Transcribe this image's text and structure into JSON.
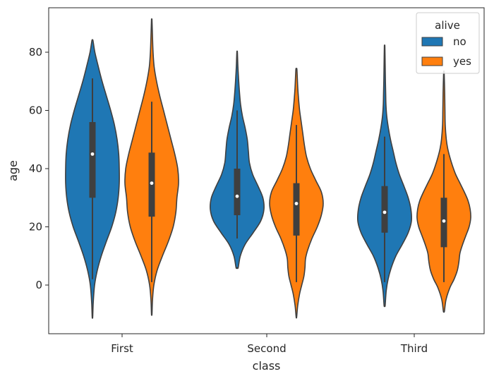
{
  "chart_data": {
    "type": "violin",
    "title": "",
    "xlabel": "class",
    "ylabel": "age",
    "categories": [
      "First",
      "Second",
      "Third"
    ],
    "yticks": [
      0,
      20,
      40,
      60,
      80
    ],
    "ylim": [
      -16,
      95
    ],
    "legend": {
      "title": "alive",
      "placement": "top-right"
    },
    "series": [
      {
        "name": "no",
        "color": "#1f77b4",
        "groups": [
          {
            "category": "First",
            "min_extent": -11,
            "max_extent": 84,
            "q1": 30,
            "median": 45,
            "q3": 56,
            "whisker_low": 2,
            "whisker_high": 71,
            "profile": [
              [
                -11,
                0.01
              ],
              [
                -6,
                0.03
              ],
              [
                0,
                0.08
              ],
              [
                5,
                0.18
              ],
              [
                10,
                0.33
              ],
              [
                15,
                0.52
              ],
              [
                20,
                0.72
              ],
              [
                25,
                0.87
              ],
              [
                30,
                0.96
              ],
              [
                35,
                1.0
              ],
              [
                40,
                1.0
              ],
              [
                45,
                0.98
              ],
              [
                50,
                0.92
              ],
              [
                55,
                0.82
              ],
              [
                60,
                0.68
              ],
              [
                65,
                0.52
              ],
              [
                70,
                0.36
              ],
              [
                75,
                0.22
              ],
              [
                80,
                0.09
              ],
              [
                84,
                0.02
              ]
            ]
          },
          {
            "category": "Second",
            "min_extent": 6,
            "max_extent": 80,
            "q1": 24,
            "median": 30.5,
            "q3": 40,
            "whisker_low": 16,
            "whisker_high": 60,
            "profile": [
              [
                6,
                0.04
              ],
              [
                10,
                0.12
              ],
              [
                14,
                0.3
              ],
              [
                18,
                0.6
              ],
              [
                22,
                0.88
              ],
              [
                26,
                1.0
              ],
              [
                30,
                0.96
              ],
              [
                34,
                0.78
              ],
              [
                38,
                0.58
              ],
              [
                42,
                0.46
              ],
              [
                46,
                0.42
              ],
              [
                50,
                0.38
              ],
              [
                54,
                0.3
              ],
              [
                58,
                0.2
              ],
              [
                62,
                0.13
              ],
              [
                66,
                0.09
              ],
              [
                70,
                0.06
              ],
              [
                75,
                0.03
              ],
              [
                80,
                0.01
              ]
            ]
          },
          {
            "category": "Third",
            "min_extent": -7,
            "max_extent": 82,
            "q1": 18,
            "median": 25,
            "q3": 34,
            "whisker_low": 1,
            "whisker_high": 51,
            "profile": [
              [
                -7,
                0.02
              ],
              [
                -2,
                0.06
              ],
              [
                2,
                0.13
              ],
              [
                6,
                0.25
              ],
              [
                10,
                0.42
              ],
              [
                14,
                0.66
              ],
              [
                18,
                0.88
              ],
              [
                22,
                1.0
              ],
              [
                26,
                0.98
              ],
              [
                30,
                0.88
              ],
              [
                34,
                0.72
              ],
              [
                38,
                0.55
              ],
              [
                42,
                0.42
              ],
              [
                46,
                0.32
              ],
              [
                50,
                0.22
              ],
              [
                54,
                0.14
              ],
              [
                58,
                0.08
              ],
              [
                62,
                0.05
              ],
              [
                66,
                0.04
              ],
              [
                70,
                0.03
              ],
              [
                76,
                0.02
              ],
              [
                82,
                0.01
              ]
            ]
          }
        ]
      },
      {
        "name": "yes",
        "color": "#ff7f0e",
        "groups": [
          {
            "category": "First",
            "min_extent": -10,
            "max_extent": 91,
            "q1": 23.5,
            "median": 35,
            "q3": 45.5,
            "whisker_low": 1,
            "whisker_high": 63,
            "profile": [
              [
                -10,
                0.01
              ],
              [
                -5,
                0.03
              ],
              [
                0,
                0.08
              ],
              [
                5,
                0.2
              ],
              [
                10,
                0.4
              ],
              [
                15,
                0.62
              ],
              [
                20,
                0.8
              ],
              [
                25,
                0.9
              ],
              [
                30,
                0.94
              ],
              [
                35,
                1.0
              ],
              [
                40,
                0.97
              ],
              [
                45,
                0.86
              ],
              [
                50,
                0.72
              ],
              [
                55,
                0.58
              ],
              [
                60,
                0.44
              ],
              [
                65,
                0.3
              ],
              [
                70,
                0.18
              ],
              [
                75,
                0.09
              ],
              [
                80,
                0.05
              ],
              [
                85,
                0.03
              ],
              [
                91,
                0.01
              ]
            ]
          },
          {
            "category": "Second",
            "min_extent": -11,
            "max_extent": 74,
            "q1": 17,
            "median": 28,
            "q3": 35,
            "whisker_low": 1,
            "whisker_high": 55,
            "profile": [
              [
                -11,
                0.01
              ],
              [
                -7,
                0.05
              ],
              [
                -3,
                0.12
              ],
              [
                0,
                0.2
              ],
              [
                3,
                0.28
              ],
              [
                6,
                0.32
              ],
              [
                9,
                0.34
              ],
              [
                12,
                0.42
              ],
              [
                16,
                0.58
              ],
              [
                20,
                0.78
              ],
              [
                24,
                0.93
              ],
              [
                28,
                1.0
              ],
              [
                32,
                0.93
              ],
              [
                36,
                0.72
              ],
              [
                40,
                0.52
              ],
              [
                44,
                0.38
              ],
              [
                48,
                0.3
              ],
              [
                52,
                0.24
              ],
              [
                56,
                0.18
              ],
              [
                60,
                0.12
              ],
              [
                64,
                0.08
              ],
              [
                68,
                0.05
              ],
              [
                74,
                0.02
              ]
            ]
          },
          {
            "category": "Third",
            "min_extent": -9,
            "max_extent": 73,
            "q1": 13,
            "median": 22,
            "q3": 30,
            "whisker_low": 1,
            "whisker_high": 45,
            "profile": [
              [
                -9,
                0.02
              ],
              [
                -5,
                0.08
              ],
              [
                -1,
                0.22
              ],
              [
                2,
                0.38
              ],
              [
                5,
                0.5
              ],
              [
                8,
                0.56
              ],
              [
                11,
                0.6
              ],
              [
                14,
                0.7
              ],
              [
                17,
                0.82
              ],
              [
                20,
                0.94
              ],
              [
                23,
                1.0
              ],
              [
                26,
                0.98
              ],
              [
                29,
                0.9
              ],
              [
                32,
                0.76
              ],
              [
                35,
                0.6
              ],
              [
                38,
                0.44
              ],
              [
                41,
                0.32
              ],
              [
                44,
                0.22
              ],
              [
                47,
                0.14
              ],
              [
                50,
                0.09
              ],
              [
                55,
                0.05
              ],
              [
                60,
                0.04
              ],
              [
                66,
                0.03
              ],
              [
                73,
                0.01
              ]
            ]
          }
        ]
      }
    ]
  }
}
